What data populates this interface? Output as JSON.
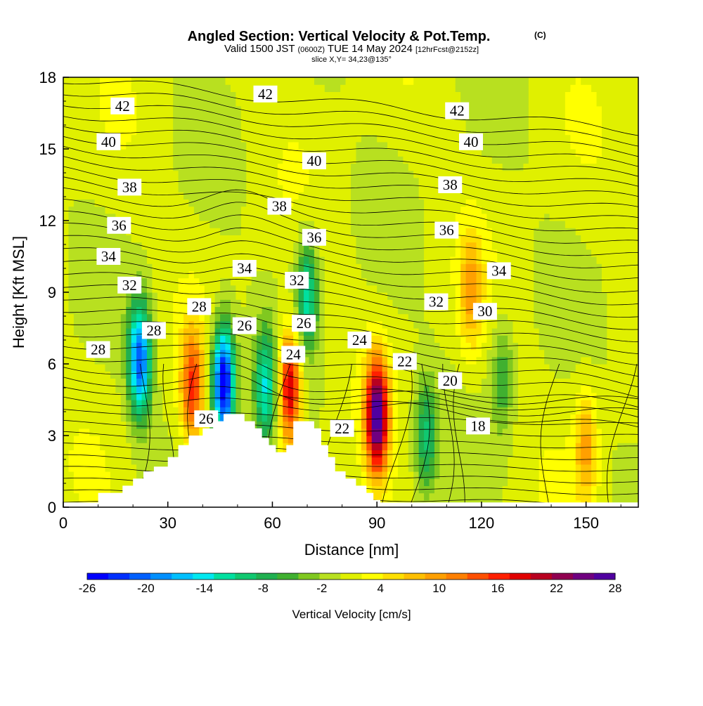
{
  "chart_data": {
    "type": "heatmap",
    "title": "Angled Section: Vertical Velocity & Pot.Temp.",
    "title_mark": "(C)",
    "subtitle": {
      "valid_prefix": "Valid 1500 JST",
      "utc": "(0600Z)",
      "date": "TUE 14 May 2024",
      "forecast": "[12hrFcst@2152z]"
    },
    "slice_text": "slice X,Y= 34,23@135°",
    "xlabel": "Distance [nm]",
    "ylabel": "Height [Kft MSL]",
    "xlim": [
      0,
      165
    ],
    "ylim": [
      0,
      18
    ],
    "x_ticks": [
      "0",
      "30",
      "60",
      "90",
      "120",
      "150"
    ],
    "y_ticks": [
      "0",
      "3",
      "6",
      "9",
      "12",
      "15",
      "18"
    ],
    "colorbar": {
      "label": "Vertical Velocity [cm/s]",
      "tick_labels": [
        "-26",
        "-20",
        "-14",
        "-8",
        "-2",
        "4",
        "10",
        "16",
        "22",
        "28"
      ],
      "range": [
        -26,
        28
      ],
      "colors": [
        "#0000ff",
        "#0030ff",
        "#0060ff",
        "#0090ff",
        "#00c0ff",
        "#00e8f0",
        "#00e0a0",
        "#10c870",
        "#20b050",
        "#40b030",
        "#80c820",
        "#b8e020",
        "#e0f000",
        "#ffff00",
        "#ffe000",
        "#ffc000",
        "#ffa000",
        "#ff8000",
        "#ff5000",
        "#ff2000",
        "#e00000",
        "#b80020",
        "#900050",
        "#700080",
        "#5000a0"
      ]
    },
    "series": [
      {
        "name": "Vertical Velocity [cm/s]",
        "kind": "shaded",
        "cells": [
          {
            "x": 22,
            "z": 6.2,
            "value": -20
          },
          {
            "x": 37,
            "z": 5.0,
            "value": 16
          },
          {
            "x": 46,
            "z": 5.2,
            "value": -26
          },
          {
            "x": 58,
            "z": 5.0,
            "value": -11
          },
          {
            "x": 65,
            "z": 5.0,
            "value": 22
          },
          {
            "x": 70,
            "z": 9.0,
            "value": -11
          },
          {
            "x": 90,
            "z": 3.8,
            "value": 28
          },
          {
            "x": 104,
            "z": 3.0,
            "value": -8
          },
          {
            "x": 117,
            "z": 9.0,
            "value": 10
          },
          {
            "x": 150,
            "z": 2.5,
            "value": 10
          },
          {
            "x": 126,
            "z": 5.5,
            "value": -5
          }
        ]
      },
      {
        "name": "Pot.Temp. (C)",
        "kind": "contour",
        "labels": [
          {
            "text": "42",
            "x": 17,
            "z": 16.8
          },
          {
            "text": "42",
            "x": 58,
            "z": 17.3
          },
          {
            "text": "42",
            "x": 113,
            "z": 16.6
          },
          {
            "text": "40",
            "x": 13,
            "z": 15.3
          },
          {
            "text": "40",
            "x": 72,
            "z": 14.5
          },
          {
            "text": "40",
            "x": 117,
            "z": 15.3
          },
          {
            "text": "38",
            "x": 19,
            "z": 13.4
          },
          {
            "text": "38",
            "x": 62,
            "z": 12.6
          },
          {
            "text": "38",
            "x": 111,
            "z": 13.5
          },
          {
            "text": "36",
            "x": 16,
            "z": 11.8
          },
          {
            "text": "36",
            "x": 72,
            "z": 11.3
          },
          {
            "text": "36",
            "x": 110,
            "z": 11.6
          },
          {
            "text": "34",
            "x": 13,
            "z": 10.5
          },
          {
            "text": "34",
            "x": 52,
            "z": 10.0
          },
          {
            "text": "34",
            "x": 125,
            "z": 9.9
          },
          {
            "text": "32",
            "x": 19,
            "z": 9.3
          },
          {
            "text": "32",
            "x": 67,
            "z": 9.5
          },
          {
            "text": "32",
            "x": 107,
            "z": 8.6
          },
          {
            "text": "30",
            "x": 121,
            "z": 8.2
          },
          {
            "text": "28",
            "x": 10,
            "z": 6.6
          },
          {
            "text": "28",
            "x": 26,
            "z": 7.4
          },
          {
            "text": "28",
            "x": 39,
            "z": 8.4
          },
          {
            "text": "26",
            "x": 52,
            "z": 7.6
          },
          {
            "text": "26",
            "x": 69,
            "z": 7.7
          },
          {
            "text": "26",
            "x": 41,
            "z": 3.7
          },
          {
            "text": "24",
            "x": 66,
            "z": 6.4
          },
          {
            "text": "24",
            "x": 85,
            "z": 7.0
          },
          {
            "text": "22",
            "x": 98,
            "z": 6.1
          },
          {
            "text": "22",
            "x": 80,
            "z": 3.3
          },
          {
            "text": "20",
            "x": 111,
            "z": 5.3
          },
          {
            "text": "18",
            "x": 119,
            "z": 3.4
          }
        ]
      }
    ],
    "terrain": [
      [
        0,
        0.2
      ],
      [
        10,
        0.2
      ],
      [
        10,
        0.6
      ],
      [
        17,
        0.6
      ],
      [
        17,
        0.9
      ],
      [
        20,
        0.9
      ],
      [
        20,
        1.2
      ],
      [
        23,
        1.2
      ],
      [
        23,
        1.5
      ],
      [
        26,
        1.5
      ],
      [
        26,
        1.7
      ],
      [
        30,
        1.7
      ],
      [
        30,
        2.1
      ],
      [
        33,
        2.1
      ],
      [
        33,
        2.6
      ],
      [
        36,
        2.6
      ],
      [
        36,
        3.0
      ],
      [
        40,
        3.0
      ],
      [
        40,
        3.3
      ],
      [
        43,
        3.3
      ],
      [
        43,
        3.6
      ],
      [
        46,
        3.6
      ],
      [
        46,
        3.9
      ],
      [
        52,
        3.9
      ],
      [
        52,
        3.6
      ],
      [
        55,
        3.6
      ],
      [
        55,
        3.3
      ],
      [
        57,
        3.3
      ],
      [
        57,
        2.9
      ],
      [
        59,
        2.9
      ],
      [
        59,
        2.6
      ],
      [
        61,
        2.6
      ],
      [
        61,
        2.3
      ],
      [
        64,
        2.3
      ],
      [
        64,
        2.6
      ],
      [
        66,
        2.6
      ],
      [
        66,
        3.6
      ],
      [
        72,
        3.6
      ],
      [
        72,
        3.3
      ],
      [
        74,
        3.3
      ],
      [
        74,
        2.6
      ],
      [
        76,
        2.6
      ],
      [
        76,
        2.1
      ],
      [
        78,
        2.1
      ],
      [
        78,
        1.5
      ],
      [
        81,
        1.5
      ],
      [
        81,
        1.2
      ],
      [
        84,
        1.2
      ],
      [
        84,
        0.9
      ],
      [
        87,
        0.9
      ],
      [
        87,
        0.6
      ],
      [
        89,
        0.6
      ],
      [
        89,
        0.3
      ],
      [
        91,
        0.3
      ],
      [
        91,
        0.2
      ],
      [
        165,
        0.2
      ]
    ],
    "grid": false,
    "legend": "bottom colorbar"
  }
}
